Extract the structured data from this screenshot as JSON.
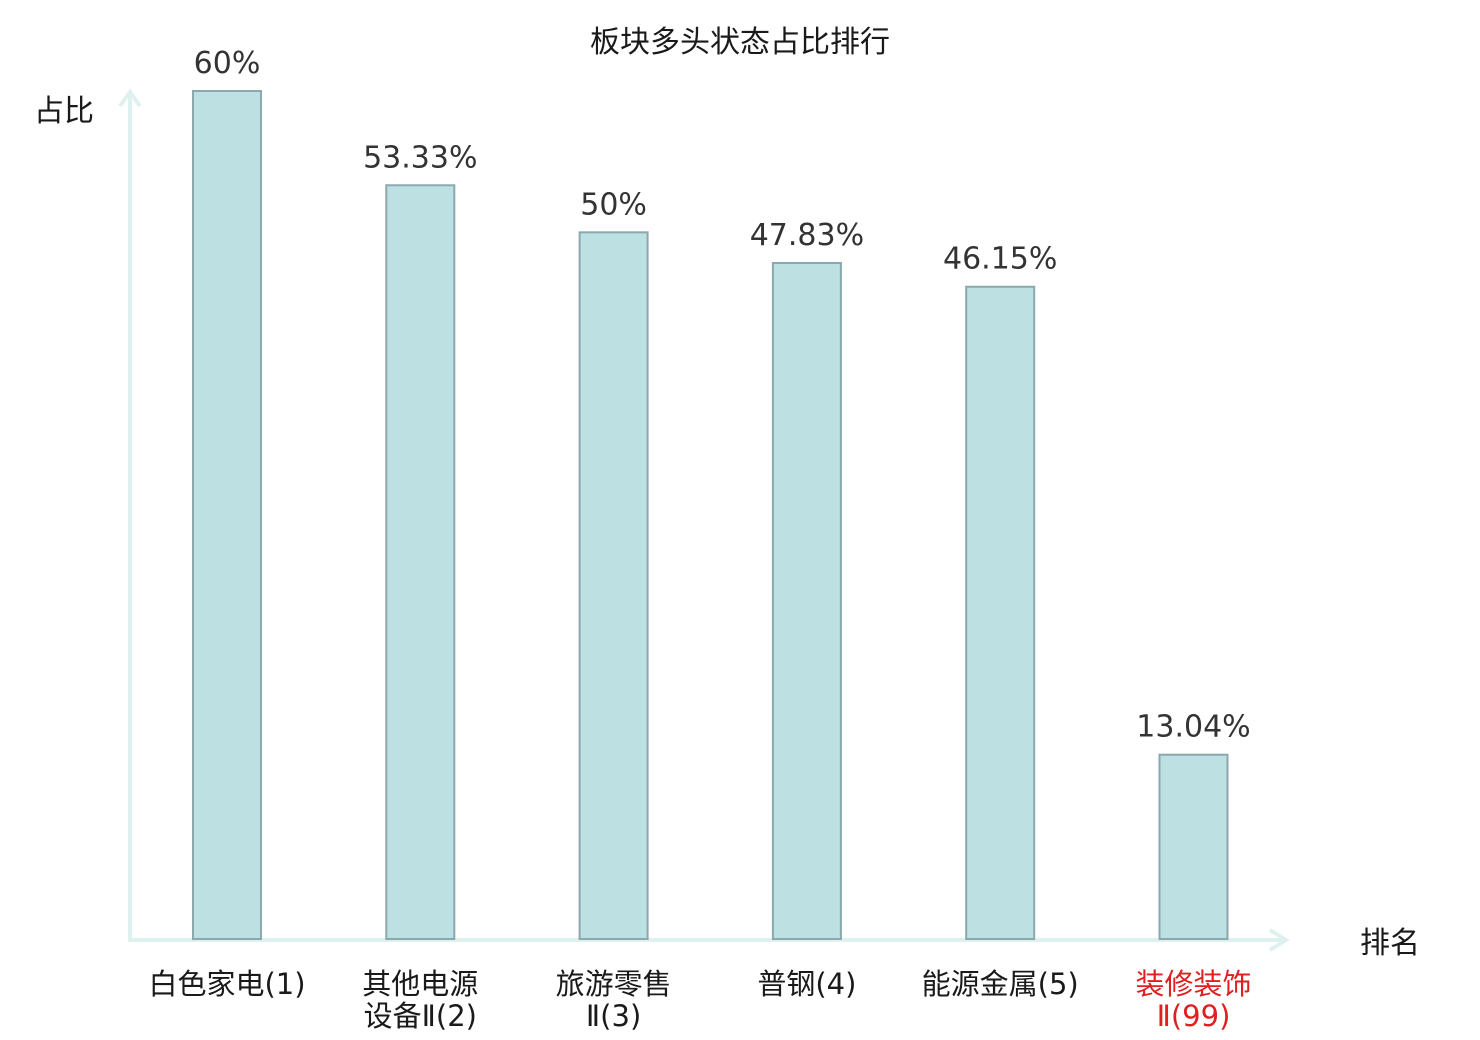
{
  "chart_data": {
    "type": "bar",
    "title": "板块多头状态占比排行",
    "ylabel": "占比",
    "xlabel": "排名",
    "ylim": [
      0,
      60
    ],
    "grid": false,
    "categories": [
      {
        "lines": [
          "白色家电(1)"
        ],
        "highlight": false
      },
      {
        "lines": [
          "其他电源",
          "设备Ⅱ(2)"
        ],
        "highlight": false
      },
      {
        "lines": [
          "旅游零售",
          "Ⅱ(3)"
        ],
        "highlight": false
      },
      {
        "lines": [
          "普钢(4)"
        ],
        "highlight": false
      },
      {
        "lines": [
          "能源金属(5)"
        ],
        "highlight": false
      },
      {
        "lines": [
          "装修装饰",
          "Ⅱ(99)"
        ],
        "highlight": true
      }
    ],
    "values": [
      60,
      53.33,
      50,
      47.83,
      46.15,
      13.04
    ],
    "value_labels": [
      "60%",
      "53.33%",
      "50%",
      "47.83%",
      "46.15%",
      "13.04%"
    ],
    "colors": {
      "bar_fill": "#bde0e3",
      "bar_stroke": "#8aa8ad",
      "axis": "#dff1ef",
      "label_normal": "#1a1a1a",
      "label_highlight": "#e02020"
    }
  }
}
